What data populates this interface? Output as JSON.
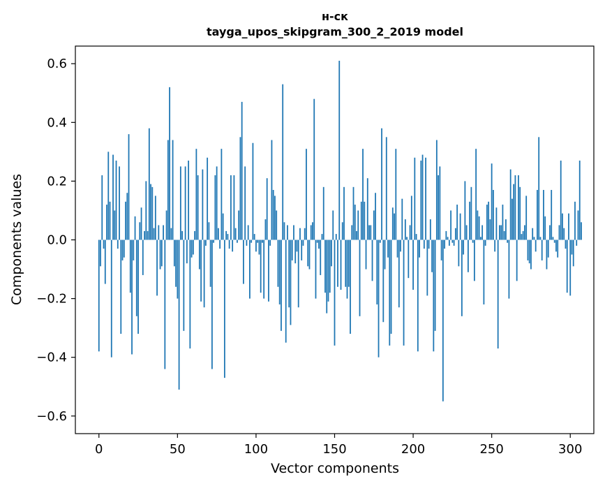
{
  "chart_data": {
    "type": "bar",
    "title": "н-ск",
    "subtitle": "tayga_upos_skipgram_300_2_2019 model",
    "xlabel": "Vector components",
    "ylabel": "Components values",
    "xlim": [
      -15,
      315
    ],
    "ylim": [
      -0.66,
      0.66
    ],
    "xticks": [
      0,
      50,
      100,
      150,
      200,
      250,
      300
    ],
    "xtick_labels": [
      "0",
      "50",
      "100",
      "150",
      "200",
      "250",
      "300"
    ],
    "yticks": [
      -0.6,
      -0.4,
      -0.2,
      0.0,
      0.2,
      0.4,
      0.6
    ],
    "ytick_labels": [
      "−0.6",
      "−0.4",
      "−0.2",
      "0.0",
      "0.2",
      "0.4",
      "0.6"
    ],
    "bar_color": "#1f77b4",
    "grid": false,
    "values": [
      -0.38,
      -0.09,
      0.22,
      -0.03,
      -0.15,
      0.12,
      0.3,
      0.13,
      -0.4,
      0.29,
      0.1,
      0.27,
      -0.03,
      0.25,
      -0.32,
      -0.07,
      -0.06,
      0.13,
      0.16,
      0.36,
      -0.18,
      -0.39,
      -0.07,
      0.08,
      -0.26,
      -0.32,
      0.06,
      0.11,
      -0.12,
      0.03,
      0.2,
      0.03,
      0.38,
      0.19,
      0.18,
      0.04,
      0.15,
      -0.19,
      0.05,
      -0.1,
      -0.09,
      0.05,
      -0.44,
      0.1,
      0.34,
      0.52,
      0.04,
      0.34,
      -0.09,
      -0.16,
      -0.2,
      -0.51,
      0.25,
      0.03,
      -0.31,
      0.25,
      -0.08,
      0.27,
      -0.37,
      -0.06,
      -0.05,
      0.03,
      0.31,
      0.22,
      -0.1,
      -0.21,
      0.24,
      -0.23,
      -0.02,
      0.28,
      0.06,
      -0.16,
      -0.44,
      -0.01,
      0.22,
      0.25,
      0.04,
      -0.03,
      0.31,
      0.09,
      -0.47,
      0.03,
      0.02,
      -0.03,
      0.22,
      -0.04,
      0.22,
      0.04,
      -0.01,
      0.1,
      0.35,
      0.47,
      -0.15,
      0.25,
      -0.02,
      0.05,
      -0.2,
      -0.01,
      0.33,
      0.02,
      -0.04,
      -0.01,
      -0.05,
      -0.18,
      -0.01,
      -0.2,
      0.07,
      0.21,
      -0.21,
      -0.02,
      0.34,
      0.17,
      0.15,
      0.1,
      -0.16,
      -0.22,
      -0.31,
      0.53,
      0.06,
      -0.35,
      0.05,
      -0.23,
      -0.29,
      -0.07,
      0.05,
      -0.08,
      -0.04,
      -0.23,
      0.04,
      -0.07,
      -0.02,
      0.04,
      0.31,
      -0.09,
      -0.1,
      0.05,
      0.06,
      0.48,
      -0.2,
      -0.01,
      -0.03,
      -0.12,
      0.02,
      0.18,
      -0.18,
      -0.25,
      -0.21,
      -0.18,
      -0.09,
      0.1,
      -0.36,
      0.02,
      -0.16,
      0.61,
      -0.17,
      0.06,
      0.18,
      -0.16,
      -0.2,
      -0.16,
      -0.32,
      0.05,
      0.18,
      0.12,
      0.03,
      0.1,
      -0.26,
      0.13,
      0.31,
      0.13,
      -0.1,
      0.21,
      0.05,
      0.05,
      -0.14,
      0.1,
      0.16,
      -0.22,
      -0.4,
      -0.01,
      0.38,
      -0.28,
      -0.1,
      0.35,
      -0.06,
      -0.36,
      -0.32,
      0.11,
      0.09,
      0.31,
      -0.06,
      -0.23,
      -0.04,
      0.14,
      -0.36,
      0.07,
      0.01,
      -0.13,
      0.05,
      0.15,
      -0.17,
      0.28,
      0.02,
      -0.38,
      -0.06,
      0.27,
      0.29,
      -0.03,
      0.28,
      -0.19,
      -0.03,
      0.07,
      -0.11,
      -0.38,
      -0.31,
      0.34,
      0.22,
      0.25,
      -0.07,
      -0.55,
      -0.03,
      0.03,
      0.01,
      -0.02,
      0.1,
      -0.01,
      -0.02,
      0.04,
      0.12,
      -0.09,
      0.09,
      -0.26,
      -0.05,
      0.2,
      0.05,
      -0.11,
      0.13,
      0.18,
      -0.01,
      -0.14,
      0.31,
      0.1,
      0.08,
      0.01,
      0.05,
      -0.22,
      -0.02,
      0.12,
      0.13,
      0.07,
      0.26,
      0.17,
      -0.04,
      0.11,
      -0.37,
      0.05,
      0.05,
      0.12,
      0.03,
      0.07,
      -0.01,
      -0.2,
      0.24,
      0.14,
      0.19,
      0.22,
      -0.14,
      0.22,
      0.18,
      0.02,
      0.03,
      0.05,
      0.15,
      -0.07,
      -0.08,
      -0.1,
      0.04,
      0.01,
      -0.04,
      0.17,
      0.35,
      0.01,
      -0.07,
      0.17,
      0.08,
      -0.1,
      -0.06,
      0.05,
      0.17,
      0.01,
      -0.01,
      -0.04,
      -0.06,
      0.05,
      0.27,
      0.09,
      0.04,
      -0.03,
      -0.18,
      0.09,
      -0.19,
      -0.05,
      -0.09,
      0.13,
      -0.02,
      0.1,
      0.27,
      0.06
    ]
  }
}
